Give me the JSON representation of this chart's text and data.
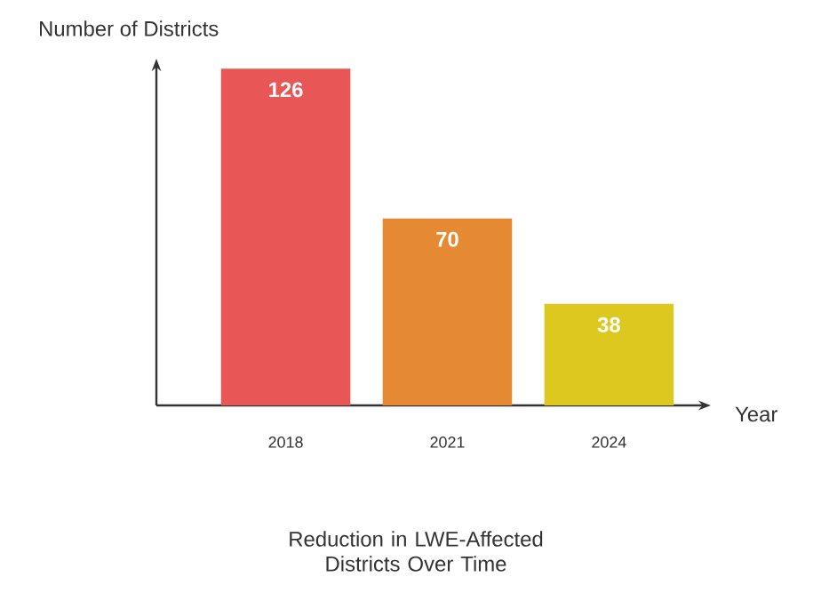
{
  "chart_data": {
    "type": "bar",
    "title": "Reduction in LWE-Affected Districts Over Time",
    "xlabel": "Year",
    "ylabel": "Number of Districts",
    "categories": [
      "2018",
      "2021",
      "2024"
    ],
    "values": [
      126,
      70,
      38
    ],
    "colors": [
      "#e85656",
      "#e58a32",
      "#dcc81f"
    ],
    "data_labels": true
  }
}
